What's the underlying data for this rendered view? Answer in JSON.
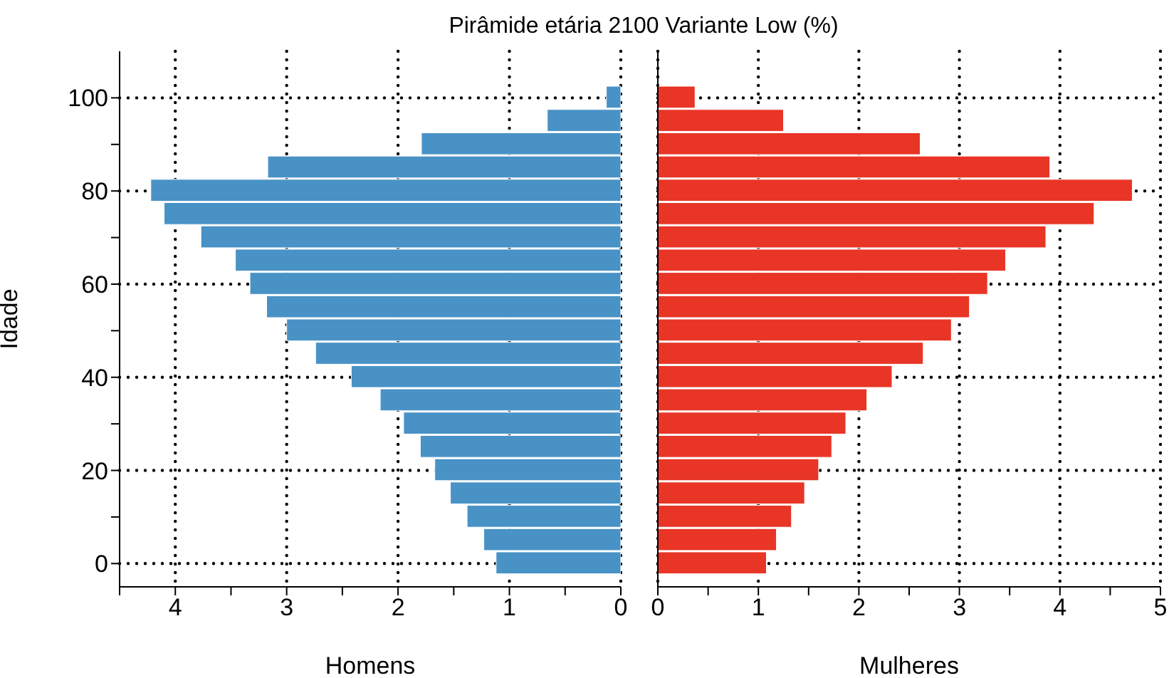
{
  "chart_data": [
    {
      "type": "bar",
      "orientation": "horizontal",
      "title": "Pirâmide etária 2100 Variante Low  (%)",
      "xlabel": "Homens",
      "ylabel": "Idade",
      "x": [
        0,
        5,
        10,
        15,
        20,
        25,
        30,
        35,
        40,
        45,
        50,
        55,
        60,
        65,
        70,
        75,
        80,
        85,
        90,
        95,
        100
      ],
      "series": [
        {
          "color": "#4892c6",
          "values": [
            1.12,
            1.23,
            1.38,
            1.53,
            1.67,
            1.8,
            1.95,
            2.16,
            2.42,
            2.74,
            3.0,
            3.18,
            3.33,
            3.46,
            3.77,
            4.1,
            4.22,
            3.17,
            1.79,
            0.66,
            0.13
          ]
        }
      ],
      "xlim": [
        4.5,
        0
      ],
      "xticks": [
        {
          "value": 4.5,
          "label": null
        },
        4,
        {
          "value": 3.5,
          "label": null
        },
        3,
        {
          "value": 2.5,
          "label": null
        },
        2,
        {
          "value": 1.5,
          "label": null
        },
        1,
        {
          "value": 0.5,
          "label": null
        },
        0
      ],
      "ylim": [
        -5,
        110
      ],
      "yticks": [
        0,
        {
          "value": 10,
          "label": null
        },
        20,
        {
          "value": 30,
          "label": null
        },
        40,
        {
          "value": 50,
          "label": null
        },
        60,
        {
          "value": 70,
          "label": null
        },
        80,
        {
          "value": 90,
          "label": null
        },
        100
      ],
      "grid": true
    },
    {
      "type": "bar",
      "orientation": "horizontal",
      "xlabel": "Mulheres",
      "x": [
        0,
        5,
        10,
        15,
        20,
        25,
        30,
        35,
        40,
        45,
        50,
        55,
        60,
        65,
        70,
        75,
        80,
        85,
        90,
        95,
        100
      ],
      "series": [
        {
          "color": "#e83526",
          "values": [
            1.08,
            1.18,
            1.33,
            1.46,
            1.6,
            1.73,
            1.87,
            2.08,
            2.33,
            2.64,
            2.92,
            3.1,
            3.28,
            3.46,
            3.86,
            4.34,
            4.72,
            3.9,
            2.61,
            1.25,
            0.37
          ]
        }
      ],
      "xlim": [
        0,
        5
      ],
      "xticks": [
        0,
        {
          "value": 0.5,
          "label": null
        },
        1,
        {
          "value": 1.5,
          "label": null
        },
        2,
        {
          "value": 2.5,
          "label": null
        },
        3,
        {
          "value": 3.5,
          "label": null
        },
        4,
        {
          "value": 4.5,
          "label": null
        },
        5
      ],
      "ylim": [
        -5,
        110
      ],
      "yticks": [
        0,
        20,
        40,
        60,
        80,
        100
      ],
      "tick_labels": "x",
      "grid": true
    }
  ]
}
